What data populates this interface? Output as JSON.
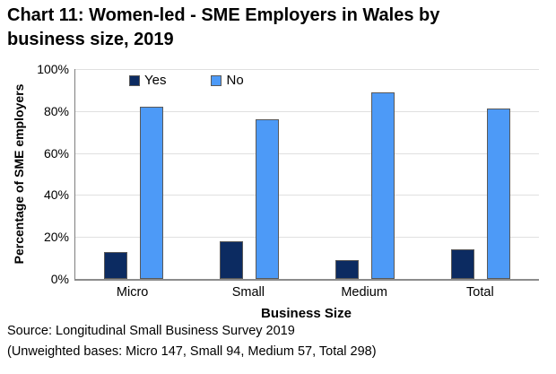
{
  "title": {
    "line1": "Chart 11: Women-led - SME Employers in Wales by",
    "line2": "business size, 2019"
  },
  "chart_data": {
    "type": "bar",
    "title": "Chart 11: Women-led - SME Employers in Wales by business size, 2019",
    "categories": [
      "Micro",
      "Small",
      "Medium",
      "Total"
    ],
    "series": [
      {
        "name": "Yes",
        "color": "#0c2b61",
        "values": [
          13,
          18,
          9,
          14
        ]
      },
      {
        "name": "No",
        "color": "#4d9af7",
        "values": [
          82,
          76,
          89,
          81
        ]
      }
    ],
    "xlabel": "Business Size",
    "ylabel": "Percentage of SME employers",
    "ylim": [
      0,
      100
    ],
    "ytick_step": 20,
    "ytick_labels": [
      "0%",
      "20%",
      "40%",
      "60%",
      "80%",
      "100%"
    ],
    "grid": true,
    "legend_position": "top-inside"
  },
  "footer": {
    "source": "Source: Longitudinal Small Business Survey 2019",
    "bases": "(Unweighted bases: Micro 147, Small 94, Medium 57, Total 298)"
  },
  "colors": {
    "yes_bar": "#0c2b61",
    "no_bar": "#4d9af7",
    "bar_border": "#595959",
    "gridline": "#e0e0e0",
    "axis_line": "#7f7f7f",
    "text": "#000000"
  }
}
